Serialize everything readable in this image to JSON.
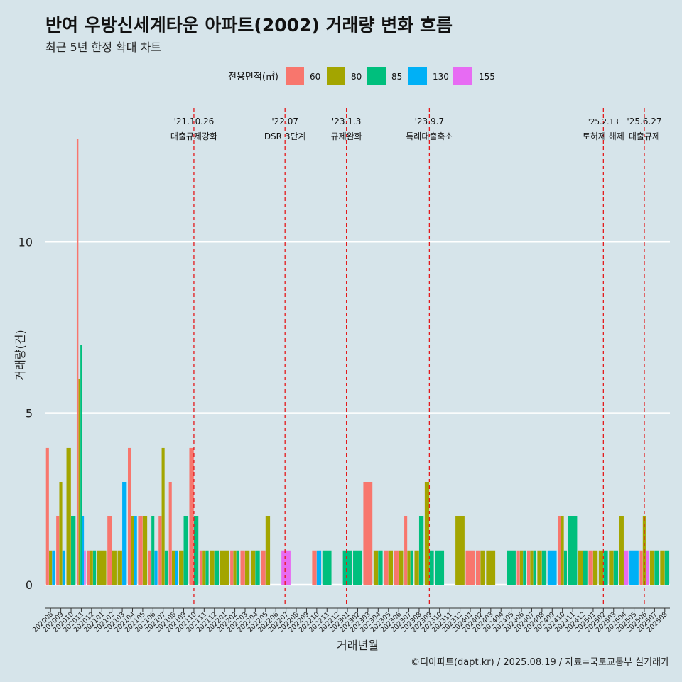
{
  "header": {
    "title": "반여 우방신세계타운 아파트(2002) 거래량 변화 흐름",
    "subtitle": "최근 5년 한정 확대 차트"
  },
  "caption": "©디아파트(dapt.kr) / 2025.08.19 / 자료=국토교통부 실거래가",
  "colors": {
    "background": "#d6e4ea",
    "gridline": "#ffffff",
    "event_line": "#e41a1c",
    "60": "#f8766d",
    "80": "#a3a500",
    "85": "#00bf7d",
    "130": "#00b0f6",
    "155": "#e76bf3"
  },
  "chart_data": {
    "type": "bar",
    "xlabel": "거래년월",
    "ylabel": "거래량(건)",
    "ylim": [
      -0.6,
      13.9
    ],
    "yticks": [
      0,
      5,
      10
    ],
    "grid": true,
    "legend_title": "전용면적(㎡)",
    "legend_position": "top",
    "categories": [
      "202008",
      "202009",
      "202010",
      "202011",
      "202012",
      "202101",
      "202102",
      "202103",
      "202104",
      "202105",
      "202106",
      "202107",
      "202108",
      "202109",
      "202110",
      "202111",
      "202112",
      "202201",
      "202202",
      "202203",
      "202204",
      "202205",
      "202206",
      "202207",
      "202208",
      "202209",
      "202210",
      "202211",
      "202212",
      "202301",
      "202302",
      "202303",
      "202304",
      "202305",
      "202306",
      "202307",
      "202308",
      "202309",
      "202310",
      "202311",
      "202312",
      "202401",
      "202402",
      "202403",
      "202404",
      "202405",
      "202406",
      "202407",
      "202408",
      "202409",
      "202410",
      "202411",
      "202412",
      "202501",
      "202502",
      "202503",
      "202504",
      "202505",
      "202506",
      "202507",
      "202508"
    ],
    "series": [
      {
        "name": "60",
        "values": [
          4,
          2,
          0,
          13,
          1,
          0,
          2,
          0,
          4,
          2,
          1,
          2,
          3,
          0,
          4,
          1,
          0,
          0,
          1,
          1,
          0,
          1,
          0,
          0,
          0,
          0,
          1,
          0,
          0,
          0,
          0,
          3,
          0,
          1,
          1,
          2,
          0,
          0,
          0,
          0,
          0,
          1,
          1,
          0,
          0,
          0,
          1,
          1,
          0,
          0,
          2,
          0,
          0,
          1,
          0,
          0,
          0,
          0,
          1,
          0,
          0
        ]
      },
      {
        "name": "80",
        "values": [
          1,
          3,
          4,
          6,
          1,
          1,
          1,
          1,
          2,
          2,
          0,
          4,
          1,
          1,
          0,
          1,
          1,
          1,
          1,
          1,
          1,
          2,
          0,
          0,
          0,
          0,
          0,
          0,
          0,
          0,
          0,
          0,
          1,
          1,
          1,
          1,
          1,
          3,
          0,
          0,
          2,
          0,
          1,
          1,
          0,
          0,
          1,
          1,
          1,
          0,
          2,
          0,
          1,
          1,
          1,
          1,
          2,
          0,
          2,
          1,
          1
        ]
      },
      {
        "name": "85",
        "values": [
          0,
          0,
          2,
          7,
          1,
          0,
          0,
          0,
          0,
          0,
          2,
          1,
          0,
          2,
          2,
          1,
          1,
          0,
          1,
          0,
          1,
          0,
          0,
          0,
          0,
          0,
          0,
          1,
          0,
          1,
          1,
          0,
          1,
          0,
          0,
          1,
          2,
          1,
          1,
          0,
          0,
          0,
          0,
          0,
          0,
          1,
          1,
          1,
          1,
          0,
          1,
          2,
          1,
          0,
          1,
          1,
          0,
          0,
          0,
          1,
          1
        ]
      },
      {
        "name": "130",
        "values": [
          1,
          1,
          0,
          2,
          0,
          0,
          0,
          3,
          2,
          0,
          1,
          0,
          1,
          0,
          0,
          0,
          0,
          0,
          0,
          0,
          0,
          0,
          0,
          0,
          0,
          0,
          1,
          0,
          0,
          0,
          0,
          0,
          0,
          0,
          0,
          0,
          0,
          0,
          0,
          0,
          0,
          0,
          0,
          0,
          0,
          0,
          0,
          0,
          0,
          1,
          0,
          0,
          0,
          0,
          0,
          0,
          0,
          1,
          0,
          0,
          0
        ]
      },
      {
        "name": "155",
        "values": [
          0,
          0,
          0,
          1,
          0,
          0,
          0,
          0,
          0,
          0,
          0,
          0,
          0,
          0,
          0,
          0,
          0,
          0,
          0,
          0,
          0,
          0,
          0,
          1,
          0,
          0,
          0,
          0,
          0,
          0,
          0,
          0,
          0,
          0,
          0,
          0,
          0,
          0,
          0,
          0,
          0,
          0,
          0,
          0,
          0,
          0,
          0,
          0,
          0,
          0,
          0,
          0,
          0,
          0,
          0,
          0,
          1,
          0,
          1,
          0,
          0
        ]
      }
    ],
    "annotations": [
      {
        "x": 14.0,
        "date": "'21.10.26",
        "label": "대출규제강화"
      },
      {
        "x": 22.9,
        "date": "'22.07",
        "label": "DSR 3단계"
      },
      {
        "x": 28.9,
        "date": "'23.1.3",
        "label": "규제완화"
      },
      {
        "x": 37.0,
        "date": "'23.9.7",
        "label": "특례대출축소"
      },
      {
        "x": 54.0,
        "date": "'25.2.13",
        "label": "토허제 해제"
      },
      {
        "x": 58.0,
        "date": "'25.6.27",
        "label": "대출규제"
      }
    ]
  }
}
